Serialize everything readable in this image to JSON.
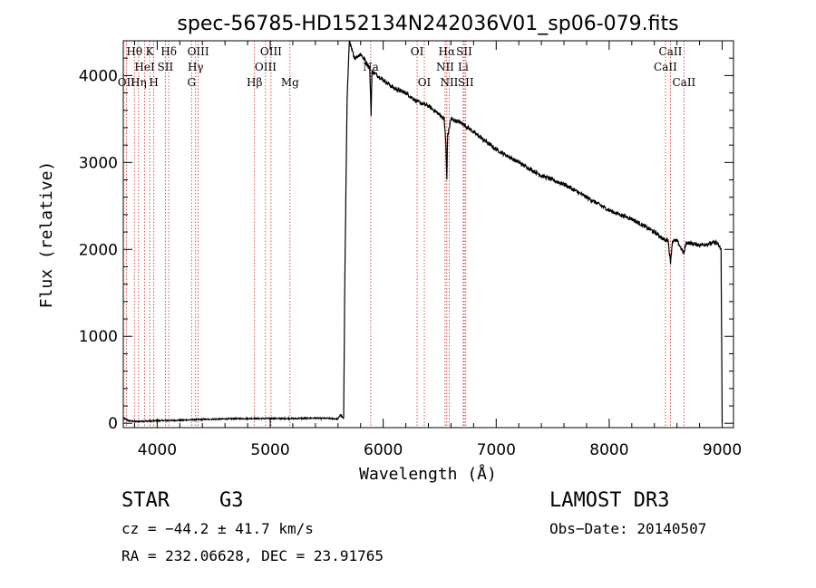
{
  "chart_data": {
    "type": "line",
    "title": "spec-56785-HD152134N242036V01_sp06-079.fits",
    "xlabel": "Wavelength (Å)",
    "ylabel": "Flux (relative)",
    "xlim": [
      3700,
      9100
    ],
    "ylim": [
      -50,
      4400
    ],
    "xticks": [
      4000,
      5000,
      6000,
      7000,
      8000,
      9000
    ],
    "yticks": [
      0,
      1000,
      2000,
      3000,
      4000
    ],
    "xtick_labels": [
      "4000",
      "5000",
      "6000",
      "7000",
      "8000",
      "9000"
    ],
    "ytick_labels": [
      "0",
      "1000",
      "2000",
      "3000",
      "4000"
    ],
    "series": [
      {
        "name": "spectrum",
        "x": [
          3700,
          3750,
          3800,
          3900,
          4000,
          4200,
          4400,
          4600,
          4800,
          5000,
          5200,
          5400,
          5550,
          5600,
          5620,
          5650,
          5660,
          5680,
          5700,
          5720,
          5750,
          5800,
          5850,
          5880,
          5893,
          5900,
          5950,
          6000,
          6100,
          6200,
          6300,
          6400,
          6500,
          6540,
          6555,
          6563,
          6570,
          6600,
          6700,
          6800,
          6900,
          7000,
          7200,
          7400,
          7600,
          7800,
          8000,
          8200,
          8400,
          8450,
          8498,
          8520,
          8542,
          8560,
          8600,
          8662,
          8680,
          8800,
          8950,
          8990,
          9000
        ],
        "y": [
          60,
          30,
          20,
          25,
          30,
          35,
          45,
          50,
          55,
          55,
          55,
          60,
          55,
          50,
          100,
          50,
          1600,
          3700,
          4400,
          4300,
          4200,
          4250,
          4150,
          4100,
          3550,
          4050,
          4000,
          3950,
          3850,
          3800,
          3700,
          3650,
          3550,
          3500,
          3200,
          2800,
          3300,
          3500,
          3450,
          3350,
          3250,
          3150,
          3000,
          2850,
          2750,
          2600,
          2450,
          2350,
          2200,
          2150,
          2100,
          2120,
          1850,
          2100,
          2100,
          1950,
          2080,
          2050,
          2080,
          2000,
          0
        ]
      }
    ],
    "spectral_lines": [
      {
        "x": 3727,
        "label": "OII",
        "row": 3
      },
      {
        "x": 3798,
        "label": "Hθ",
        "row": 1
      },
      {
        "x": 3835,
        "label": "Hη",
        "row": 3
      },
      {
        "x": 3889,
        "label": "HeI",
        "row": 2
      },
      {
        "x": 3934,
        "label": "K",
        "row": 1
      },
      {
        "x": 3970,
        "label": "H",
        "row": 3
      },
      {
        "x": 4072,
        "label": "SII",
        "row": 2
      },
      {
        "x": 4102,
        "label": "Hδ",
        "row": 1
      },
      {
        "x": 4304,
        "label": "G",
        "row": 3
      },
      {
        "x": 4340,
        "label": "Hγ",
        "row": 2
      },
      {
        "x": 4363,
        "label": "OIII",
        "row": 1
      },
      {
        "x": 4861,
        "label": "Hβ",
        "row": 3
      },
      {
        "x": 4959,
        "label": "OIII",
        "row": 2
      },
      {
        "x": 5007,
        "label": "OIII",
        "row": 1
      },
      {
        "x": 5175,
        "label": "Mg",
        "row": 3
      },
      {
        "x": 5890,
        "label": "Na",
        "row": 2
      },
      {
        "x": 6300,
        "label": "OI",
        "row": 1
      },
      {
        "x": 6364,
        "label": "OI",
        "row": 3
      },
      {
        "x": 6548,
        "label": "NII",
        "row": 2
      },
      {
        "x": 6563,
        "label": "Hα",
        "row": 1
      },
      {
        "x": 6584,
        "label": "NII",
        "row": 3
      },
      {
        "x": 6708,
        "label": "Li",
        "row": 2
      },
      {
        "x": 6717,
        "label": "SII",
        "row": 1
      },
      {
        "x": 6731,
        "label": "SII",
        "row": 3
      },
      {
        "x": 8498,
        "label": "CaII",
        "row": 2
      },
      {
        "x": 8542,
        "label": "CaII",
        "row": 1
      },
      {
        "x": 8662,
        "label": "CaII",
        "row": 3
      }
    ]
  },
  "info": {
    "object_class": "STAR",
    "subclass": "G3",
    "survey": "LAMOST DR3",
    "redshift_text": "cz = −44.2 ± 41.7 km/s",
    "obs_date_text": "Obs−Date: 20140507",
    "coords_text": "RA = 232.06628, DEC =  23.91765"
  },
  "colors": {
    "spectrum": "#000000",
    "line_marker": "#cc2222",
    "axis": "#000000",
    "background": "#ffffff"
  }
}
